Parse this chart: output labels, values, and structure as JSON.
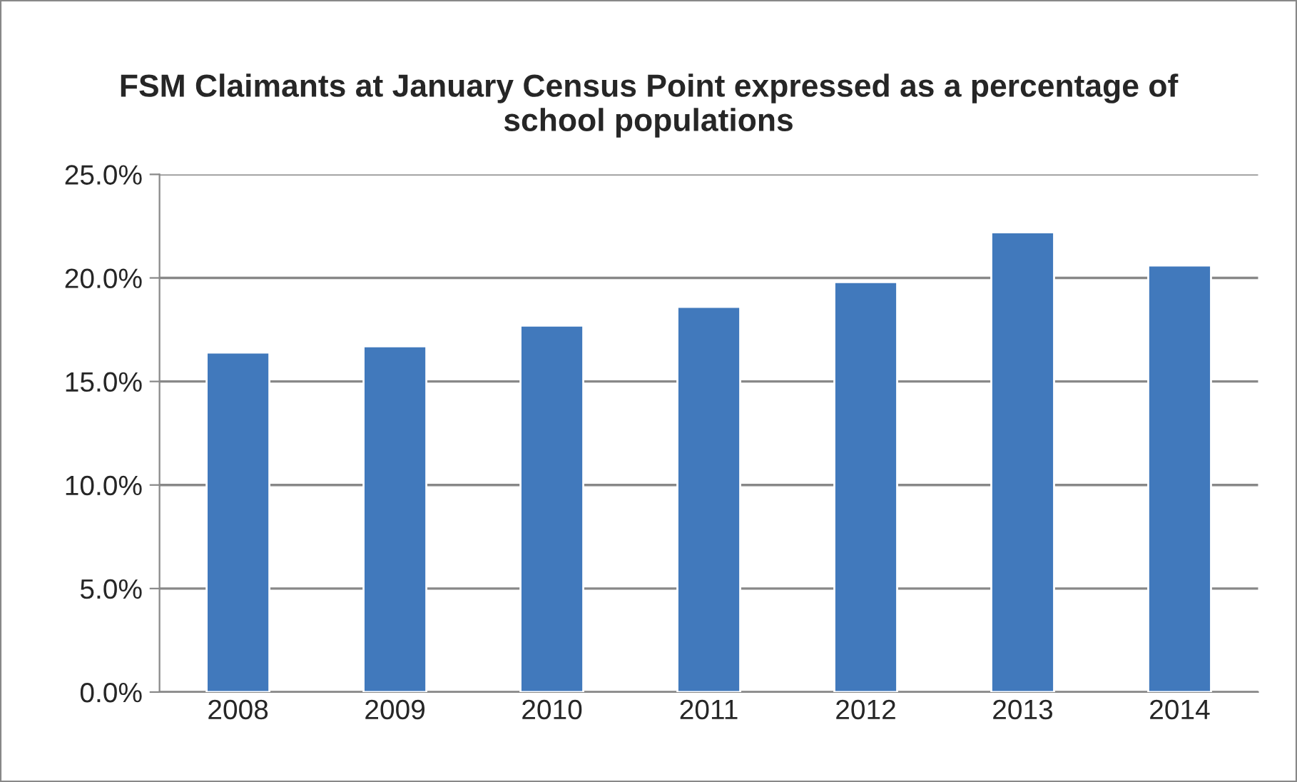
{
  "chart_data": {
    "type": "bar",
    "title": "FSM Claimants at January Census Point expressed as a percentage of school populations",
    "categories": [
      "2008",
      "2009",
      "2010",
      "2011",
      "2012",
      "2013",
      "2014"
    ],
    "values": [
      16.4,
      16.7,
      17.7,
      18.6,
      19.8,
      22.2,
      20.6
    ],
    "color": "#4179bc",
    "ylim": [
      0,
      25
    ],
    "yticks": [
      {
        "value": 0,
        "label": "0.0%"
      },
      {
        "value": 5,
        "label": "5.0%"
      },
      {
        "value": 10,
        "label": "10.0%"
      },
      {
        "value": 15,
        "label": "15.0%"
      },
      {
        "value": 20,
        "label": "20.0%"
      },
      {
        "value": 25,
        "label": "25.0%"
      }
    ],
    "grid": "y",
    "legend": false
  }
}
